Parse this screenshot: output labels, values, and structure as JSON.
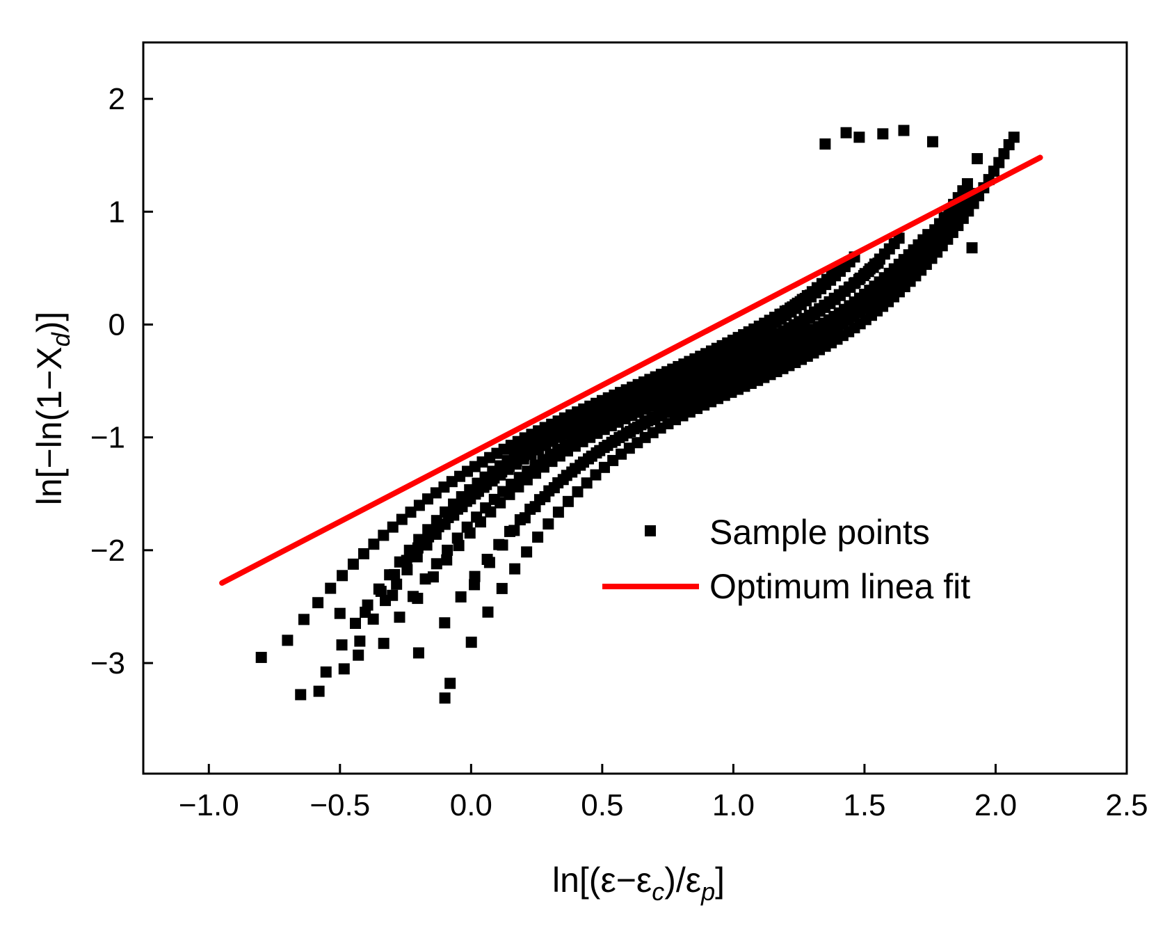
{
  "chart_data": {
    "type": "scatter",
    "title": "",
    "xlabel": "ln[(ε−εc)/εp]",
    "xlabel_parts": {
      "pre": "ln[(ε−ε",
      "sub1": "c",
      "mid": ")/ε",
      "sub2": "p",
      "post": "]"
    },
    "ylabel": "ln[−ln(1−Xd)]",
    "ylabel_parts": {
      "pre": "ln[−ln(1−X",
      "sub": "d",
      "post": ")]"
    },
    "xlim": [
      -1.25,
      2.5
    ],
    "ylim": [
      -3.98,
      2.5
    ],
    "xticks": [
      -1.0,
      -0.5,
      0.0,
      0.5,
      1.0,
      1.5,
      2.0,
      2.5
    ],
    "xtick_labels": [
      "−1.0",
      "−0.5",
      "0.0",
      "0.5",
      "1.0",
      "1.5",
      "2.0",
      "2.5"
    ],
    "yticks": [
      -3,
      -2,
      -1,
      0,
      1,
      2
    ],
    "ytick_labels": [
      "−3",
      "−2",
      "−1",
      "0",
      "1",
      "2"
    ],
    "legend_position": "lower-right",
    "legend": [
      {
        "label": "Sample points",
        "marker": "square",
        "color": "#000000"
      },
      {
        "label": "Optimum linea fit",
        "marker": "line",
        "color": "#ff0000"
      }
    ],
    "series": [
      {
        "name": "Sample points",
        "kind": "scatter",
        "color": "#000000",
        "curves": [
          {
            "start": [
              -0.8,
              -2.95
            ],
            "end": [
              1.35,
              1.6
            ]
          },
          {
            "start": [
              -0.65,
              -3.28
            ],
            "end": [
              1.43,
              1.7
            ]
          },
          {
            "start": [
              -0.58,
              -3.25
            ],
            "end": [
              1.48,
              1.66
            ]
          },
          {
            "start": [
              -0.5,
              -2.56
            ],
            "end": [
              1.57,
              1.69
            ]
          },
          {
            "start": [
              -0.43,
              -2.93
            ],
            "end": [
              1.65,
              1.72
            ]
          },
          {
            "start": [
              -0.3,
              -2.4
            ],
            "end": [
              1.76,
              1.62
            ]
          },
          {
            "start": [
              -0.2,
              -2.91
            ],
            "end": [
              1.93,
              1.47
            ]
          },
          {
            "start": [
              -0.1,
              -3.31
            ],
            "end": [
              2.07,
              1.66
            ]
          },
          {
            "start": [
              -0.08,
              -3.18
            ],
            "end": [
              1.91,
              0.68
            ]
          }
        ]
      },
      {
        "name": "Optimum linea fit",
        "kind": "line",
        "color": "#ff0000",
        "x": [
          -0.95,
          2.17
        ],
        "y": [
          -2.29,
          1.48
        ]
      }
    ]
  }
}
